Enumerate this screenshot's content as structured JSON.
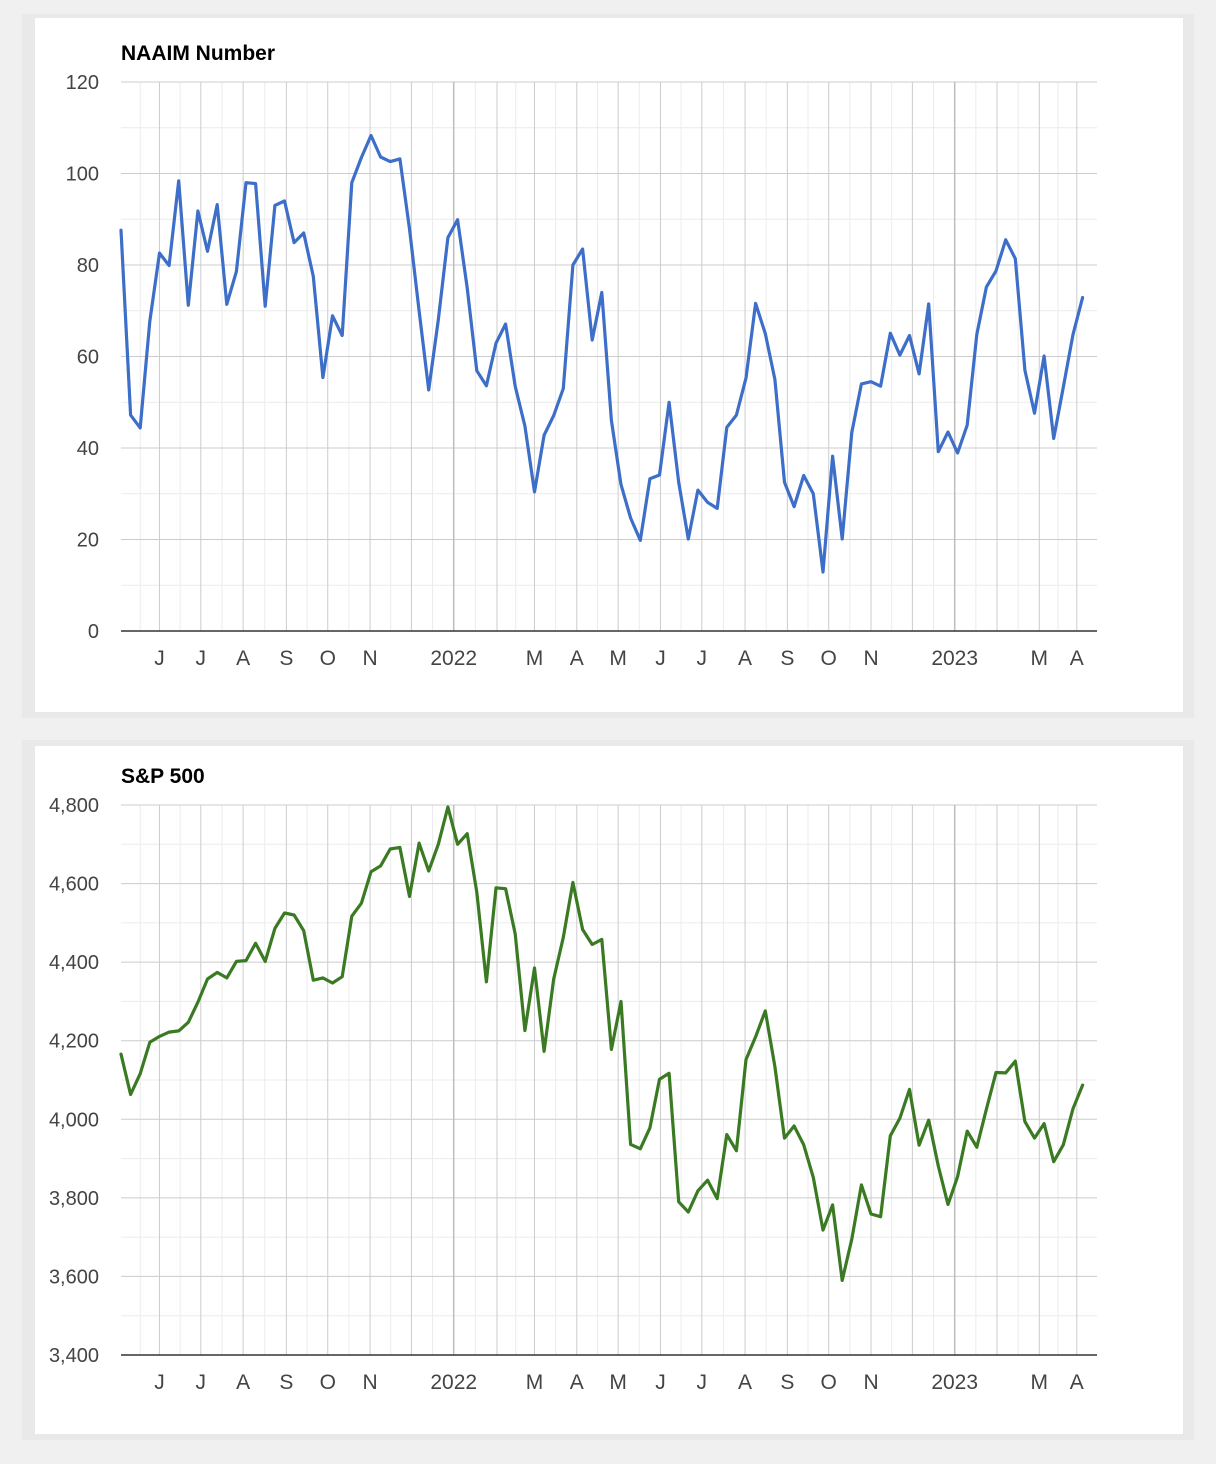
{
  "chart_data": [
    {
      "type": "line",
      "title": "NAAIM Number",
      "color": "#3d6ec8",
      "ylim": [
        0,
        120
      ],
      "yticks": [
        0,
        20,
        40,
        60,
        80,
        100,
        120
      ],
      "ytick_labels": [
        "0",
        "20",
        "40",
        "60",
        "80",
        "100",
        "120"
      ],
      "x_range_weeks": [
        0,
        101.5
      ],
      "month_starts": [
        4,
        8.3,
        12.7,
        17.2,
        21.5,
        25.9,
        30.2,
        34.6,
        39.1,
        43,
        47.4,
        51.7,
        56.1,
        60.4,
        64.9,
        69.3,
        73.6,
        78,
        82.3,
        86.7,
        91.1,
        95.5,
        99.4
      ],
      "month_labels": [
        "J",
        "J",
        "A",
        "S",
        "O",
        "N",
        "",
        "2022",
        "",
        "M",
        "A",
        "M",
        "J",
        "J",
        "A",
        "S",
        "O",
        "N",
        "",
        "2023",
        "",
        "M",
        "A"
      ],
      "series": [
        {
          "name": "NAAIM Number",
          "values": [
            87.6,
            47.2,
            44.4,
            67.7,
            82.6,
            79.9,
            98.4,
            71.2,
            91.8,
            83.0,
            93.2,
            71.4,
            78.6,
            98.0,
            97.8,
            71.0,
            93.0,
            94.0,
            84.9,
            87.0,
            77.5,
            55.4,
            68.9,
            64.6,
            98.0,
            103.5,
            108.3,
            103.6,
            102.6,
            103.2,
            87.9,
            70.0,
            52.7,
            68.0,
            86.0,
            89.9,
            75.0,
            56.9,
            53.6,
            62.9,
            67.1,
            53.5,
            44.8,
            30.4,
            42.8,
            47.1,
            53.0,
            80.0,
            83.5,
            63.6,
            74.0,
            46.0,
            32.0,
            24.7,
            19.8,
            33.3,
            34.1,
            50.0,
            32.5,
            20.1,
            30.8,
            28.1,
            26.8,
            44.5,
            47.2,
            55.3,
            71.6,
            65.0,
            55.0,
            32.5,
            27.2,
            34.0,
            30.0,
            12.9,
            38.2,
            20.1,
            43.4,
            54.0,
            54.5,
            53.5,
            65.1,
            60.3,
            64.6,
            56.2,
            71.5,
            39.2,
            43.5,
            38.9,
            45.0,
            64.8,
            75.2,
            78.7,
            85.5,
            81.4,
            57.0,
            47.6,
            60.1,
            42.1,
            53.3,
            64.8,
            72.9
          ]
        }
      ]
    },
    {
      "type": "line",
      "title": "S&P 500",
      "color": "#3a7a22",
      "ylim": [
        3400,
        4800
      ],
      "yticks": [
        3400,
        3600,
        3800,
        4000,
        4200,
        4400,
        4600,
        4800
      ],
      "ytick_labels": [
        "3,400",
        "3,600",
        "3,800",
        "4,000",
        "4,200",
        "4,400",
        "4,600",
        "4,800"
      ],
      "x_range_weeks": [
        0,
        101.5
      ],
      "month_starts": [
        4,
        8.3,
        12.7,
        17.2,
        21.5,
        25.9,
        30.2,
        34.6,
        39.1,
        43,
        47.4,
        51.7,
        56.1,
        60.4,
        64.9,
        69.3,
        73.6,
        78,
        82.3,
        86.7,
        91.1,
        95.5,
        99.4
      ],
      "month_labels": [
        "J",
        "J",
        "A",
        "S",
        "O",
        "N",
        "",
        "2022",
        "",
        "M",
        "A",
        "M",
        "J",
        "J",
        "A",
        "S",
        "O",
        "N",
        "",
        "2023",
        "",
        "M",
        "A"
      ],
      "series": [
        {
          "name": "S&P 500",
          "values": [
            4166,
            4063,
            4116,
            4196,
            4211,
            4222,
            4225,
            4247,
            4298,
            4357,
            4374,
            4360,
            4402,
            4404,
            4448,
            4402,
            4486,
            4525,
            4520,
            4480,
            4354,
            4360,
            4347,
            4363,
            4517,
            4550,
            4630,
            4645,
            4688,
            4692,
            4567,
            4703,
            4632,
            4700,
            4795,
            4700,
            4727,
            4578,
            4350,
            4589,
            4587,
            4472,
            4226,
            4385,
            4173,
            4357,
            4463,
            4603,
            4483,
            4445,
            4458,
            4178,
            4300,
            3936,
            3925,
            3978,
            4102,
            4117,
            3790,
            3764,
            3818,
            3845,
            3798,
            3961,
            3920,
            4152,
            4210,
            4276,
            4134,
            3952,
            3983,
            3935,
            3852,
            3718,
            3782,
            3590,
            3695,
            3833,
            3759,
            3752,
            3958,
            4003,
            4076,
            3934,
            3998,
            3881,
            3783,
            3854,
            3970,
            3929,
            4026,
            4119,
            4118,
            4148,
            3994,
            3952,
            3989,
            3892,
            3935,
            4027,
            4087
          ]
        }
      ]
    }
  ]
}
